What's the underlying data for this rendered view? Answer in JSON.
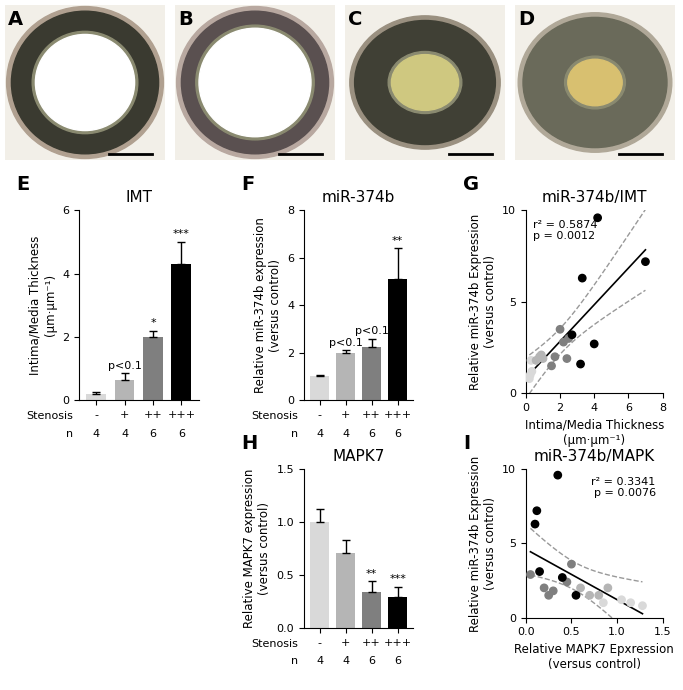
{
  "images": [
    {
      "panel": "A"
    },
    {
      "panel": "B"
    },
    {
      "panel": "C"
    },
    {
      "panel": "D"
    }
  ],
  "chart_data": [
    {
      "type": "bar",
      "panel": "E",
      "title": "IMT",
      "categories": [
        "-",
        "+",
        "++",
        "+++"
      ],
      "values": [
        0.2,
        0.65,
        2.0,
        4.3
      ],
      "errors": [
        0.05,
        0.2,
        0.2,
        0.7
      ],
      "colors": [
        "#d9d9d9",
        "#b5b5b5",
        "#7f7f7f",
        "#000000"
      ],
      "annotations": [
        null,
        "p<0.1",
        "*",
        "***"
      ],
      "row_labels": [
        "Stenosis",
        "n"
      ],
      "n": [
        4,
        4,
        6,
        6
      ],
      "y_label": "Intima/Media Thickness\n(µm·µm⁻¹)",
      "ylim": [
        0,
        6
      ],
      "yticks": [
        0,
        2,
        4,
        6
      ]
    },
    {
      "type": "bar",
      "panel": "F",
      "title": "miR-374b",
      "categories": [
        "-",
        "+",
        "++",
        "+++"
      ],
      "values": [
        1.0,
        2.0,
        2.25,
        5.1
      ],
      "errors": [
        0.05,
        0.1,
        0.35,
        1.3
      ],
      "colors": [
        "#d9d9d9",
        "#b5b5b5",
        "#7f7f7f",
        "#000000"
      ],
      "annotations": [
        null,
        "p<0.1",
        "p<0.1",
        "**"
      ],
      "row_labels": [
        "Stenosis",
        "n"
      ],
      "n": [
        4,
        4,
        6,
        6
      ],
      "y_label": "Relative miR-374b expression\n(versus control)",
      "ylim": [
        0,
        8
      ],
      "yticks": [
        0,
        2,
        4,
        6,
        8
      ]
    },
    {
      "type": "scatter",
      "panel": "G",
      "title": "miR-374b/IMT",
      "x": [
        0.2,
        0.25,
        0.3,
        0.35,
        0.6,
        0.8,
        0.9,
        1.0,
        1.5,
        1.7,
        2.0,
        2.2,
        2.4,
        2.5,
        3.2,
        3.3,
        4.0,
        4.2,
        7.0,
        2.7
      ],
      "y": [
        0.8,
        1.0,
        1.8,
        1.2,
        1.8,
        2.0,
        2.1,
        1.9,
        1.5,
        2.0,
        3.5,
        2.8,
        1.9,
        3.0,
        1.6,
        6.3,
        2.7,
        9.6,
        7.2,
        3.2
      ],
      "colors": [
        "#d9d9d9",
        "#d9d9d9",
        "#d9d9d9",
        "#d9d9d9",
        "#b5b5b5",
        "#b5b5b5",
        "#b5b5b5",
        "#b5b5b5",
        "#7f7f7f",
        "#7f7f7f",
        "#7f7f7f",
        "#7f7f7f",
        "#7f7f7f",
        "#7f7f7f",
        "#000000",
        "#000000",
        "#000000",
        "#000000",
        "#000000",
        "#000000"
      ],
      "annotations": [
        "r² = 0.5874\np = 0.0012"
      ],
      "x_label": "Intima/Media Thickness\n(µm·µm⁻¹)",
      "y_label": "Relative miR-374b Expression\n(versus control)",
      "xlim": [
        0,
        8
      ],
      "xticks": [
        0,
        2,
        4,
        6,
        8
      ],
      "ylim": [
        0,
        10
      ],
      "yticks": [
        0,
        5,
        10
      ]
    },
    {
      "type": "bar",
      "panel": "H",
      "title": "MAPK7",
      "categories": [
        "-",
        "+",
        "++",
        "+++"
      ],
      "values": [
        1.0,
        0.71,
        0.34,
        0.29
      ],
      "errors": [
        0.12,
        0.12,
        0.1,
        0.1
      ],
      "colors": [
        "#d9d9d9",
        "#b5b5b5",
        "#7f7f7f",
        "#000000"
      ],
      "annotations": [
        null,
        null,
        "**",
        "***"
      ],
      "row_labels": [
        "Stenosis",
        "n"
      ],
      "n": [
        4,
        4,
        6,
        6
      ],
      "y_label": "Relative MAPK7 expression\n(versus control)",
      "ylim": [
        0,
        1.5
      ],
      "yticks": [
        {
          "value": 0,
          "label": "0.0"
        },
        0.5,
        {
          "value": 1,
          "label": "1.0"
        },
        1.5
      ]
    },
    {
      "type": "scatter",
      "panel": "I",
      "title": "miR-374b/MAPK",
      "x": [
        0.85,
        1.05,
        1.15,
        1.28,
        0.6,
        0.7,
        0.8,
        0.9,
        0.05,
        0.2,
        0.25,
        0.3,
        0.45,
        0.5,
        0.1,
        0.12,
        0.35,
        0.15,
        0.4,
        0.55
      ],
      "y": [
        1.0,
        1.2,
        1.0,
        0.8,
        2.0,
        1.5,
        1.5,
        2.0,
        2.9,
        2.0,
        1.5,
        1.8,
        2.4,
        3.6,
        6.3,
        7.2,
        9.6,
        3.1,
        2.7,
        1.5
      ],
      "colors": [
        "#d9d9d9",
        "#d9d9d9",
        "#d9d9d9",
        "#d9d9d9",
        "#b5b5b5",
        "#b5b5b5",
        "#b5b5b5",
        "#b5b5b5",
        "#7f7f7f",
        "#7f7f7f",
        "#7f7f7f",
        "#7f7f7f",
        "#7f7f7f",
        "#7f7f7f",
        "#000000",
        "#000000",
        "#000000",
        "#000000",
        "#000000",
        "#000000"
      ],
      "annotations": [
        "r² = 0.3341\np = 0.0076"
      ],
      "x_label": "Relative MAPK7 Epxression\n(versus control)",
      "y_label": "Relative miR-374b Expression\n(versus control)",
      "xlim": [
        0,
        1.5
      ],
      "xticks": [
        {
          "value": 0,
          "label": "0.0"
        },
        0.5,
        {
          "value": 1,
          "label": "1.0"
        },
        1.5
      ],
      "ylim": [
        0,
        10
      ],
      "yticks": [
        0,
        5,
        10
      ]
    }
  ]
}
